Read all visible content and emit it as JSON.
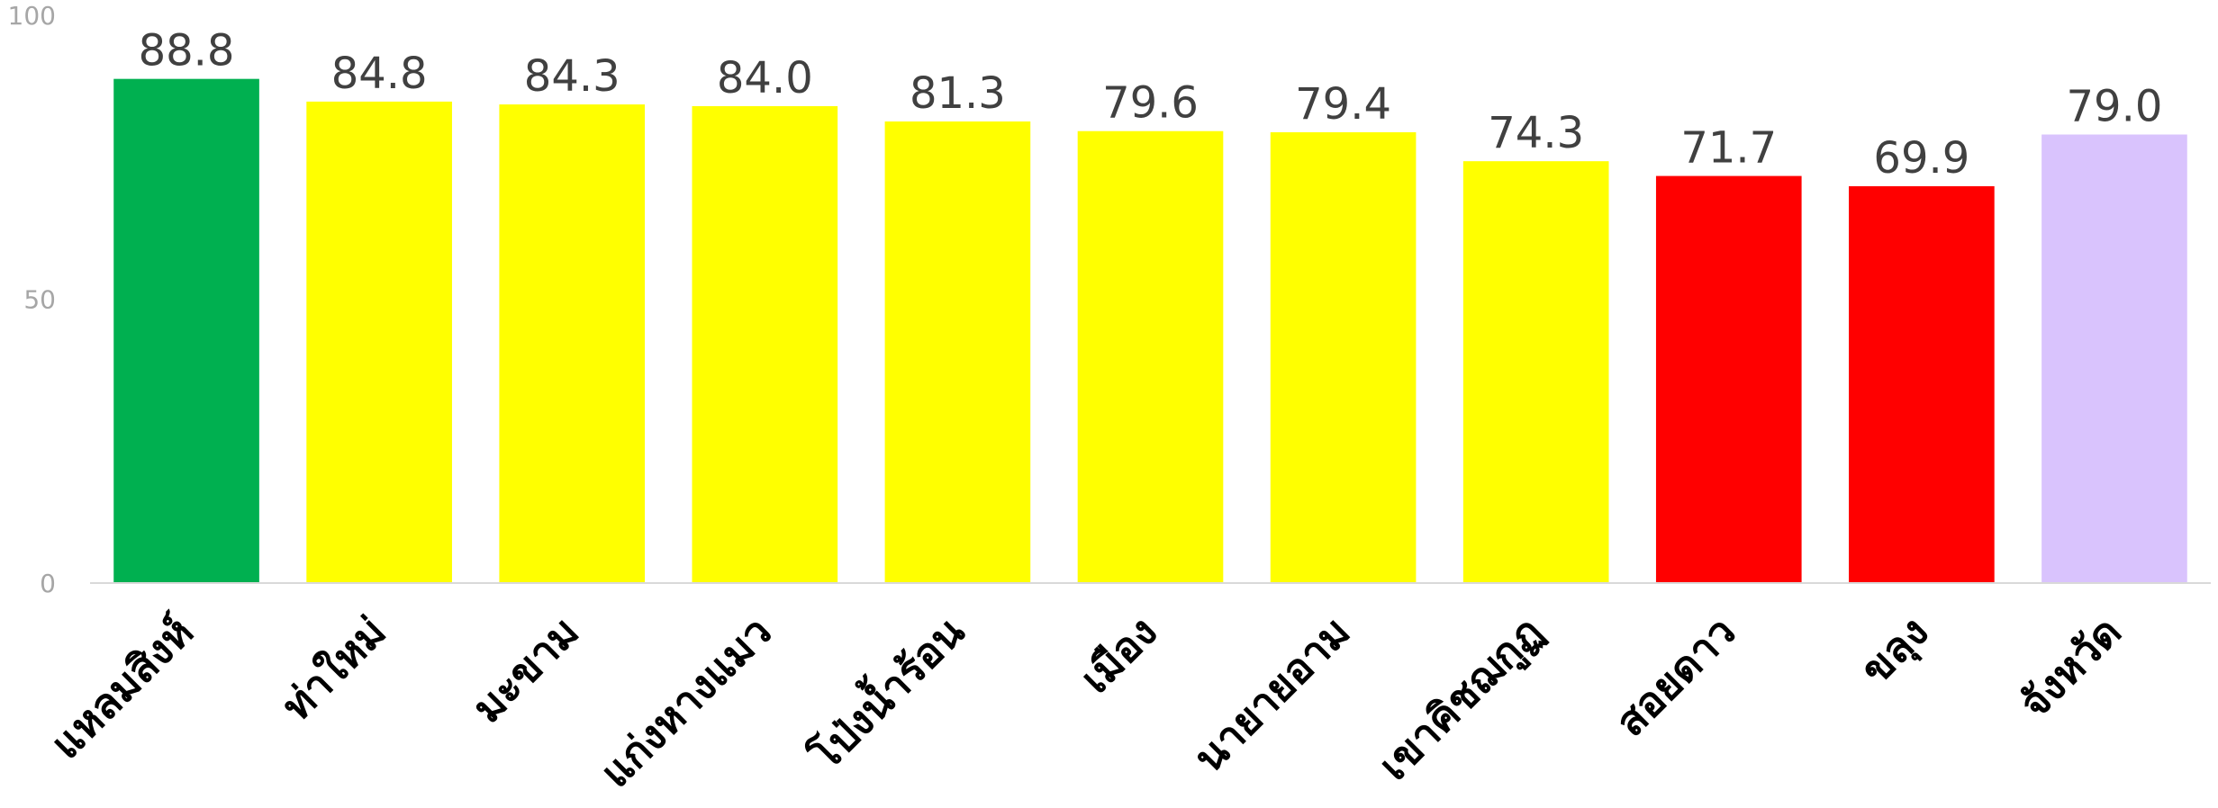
{
  "chart_data": {
    "type": "bar",
    "categories": [
      "แหลมสิงห์",
      "ท่าใหม่",
      "มะขาม",
      "แก่งหางแมว",
      "โป่งน้ำร้อน",
      "เมือง",
      "นายายอาม",
      "เขาคิชฌกูฏ",
      "สอยดาว",
      "ขลุง",
      "จังหวัด"
    ],
    "values": [
      88.8,
      84.8,
      84.3,
      84.0,
      81.3,
      79.6,
      79.4,
      74.3,
      71.7,
      69.9,
      79.0
    ],
    "value_labels": [
      "88.8",
      "84.8",
      "84.3",
      "84.0",
      "81.3",
      "79.6",
      "79.4",
      "74.3",
      "71.7",
      "69.9",
      "79.0"
    ],
    "colors": [
      "#00b050",
      "#ffff00",
      "#ffff00",
      "#ffff00",
      "#ffff00",
      "#ffff00",
      "#ffff00",
      "#ffff00",
      "#ff0000",
      "#ff0000",
      "#d9c3fd"
    ],
    "yticks": [
      0,
      50,
      100
    ],
    "ytick_labels": [
      "0",
      "50",
      "100"
    ],
    "ylim": [
      0,
      100
    ],
    "title": "",
    "xlabel": "",
    "ylabel": "",
    "grid": false,
    "legend": "none"
  }
}
